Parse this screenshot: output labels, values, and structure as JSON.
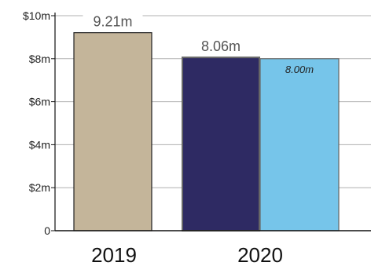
{
  "chart_data": {
    "type": "bar",
    "title": "",
    "xlabel": "",
    "ylabel": "",
    "ylim": [
      0,
      10
    ],
    "y_ticks": [
      {
        "value": 0,
        "label": "0"
      },
      {
        "value": 2,
        "label": "$2m"
      },
      {
        "value": 4,
        "label": "$4m"
      },
      {
        "value": 6,
        "label": "$6m"
      },
      {
        "value": 8,
        "label": "$8m"
      },
      {
        "value": 10,
        "label": "$10m"
      }
    ],
    "categories": [
      "2019",
      "2020"
    ],
    "grid": true,
    "legend": "none",
    "bars": [
      {
        "category": "2019",
        "value": 9.21,
        "label": "9.21m",
        "color": "#c4b59a",
        "label_style": "above"
      },
      {
        "category": "2020",
        "value": 8.06,
        "label": "8.06m",
        "color": "#2e2a63",
        "label_style": "above"
      },
      {
        "category": "2020",
        "value": 8.0,
        "label": "8.00m",
        "color": "#76c5ea",
        "label_style": "inside"
      }
    ]
  }
}
